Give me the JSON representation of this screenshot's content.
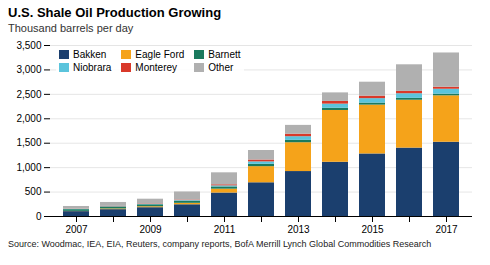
{
  "chart_data": {
    "type": "bar",
    "stacked": true,
    "title": "U.S. Shale Oil Production Growing",
    "subtitle": "Thousand barrels per day",
    "source": "Source: Woodmac, IEA, EIA, Reuters, company reports, BofA Merrill Lynch Global Commodities Research",
    "categories": [
      "2007",
      null,
      "2009",
      null,
      "2011",
      null,
      "2013",
      null,
      "2015",
      null,
      "2017"
    ],
    "series": [
      {
        "name": "Bakken",
        "color": "#1b3f6e",
        "values": [
          100,
          140,
          180,
          240,
          480,
          690,
          920,
          1110,
          1280,
          1400,
          1520
        ]
      },
      {
        "name": "Eagle Ford",
        "color": "#f5a31a",
        "values": [
          5,
          15,
          20,
          30,
          80,
          330,
          590,
          1060,
          1000,
          980,
          950
        ]
      },
      {
        "name": "Barnett",
        "color": "#1a7a5e",
        "values": [
          35,
          38,
          40,
          42,
          45,
          48,
          48,
          45,
          42,
          38,
          35
        ]
      },
      {
        "name": "Niobrara",
        "color": "#5bc4dc",
        "values": [
          5,
          7,
          10,
          13,
          22,
          50,
          75,
          85,
          90,
          95,
          100
        ]
      },
      {
        "name": "Monterey",
        "color": "#d9392a",
        "values": [
          5,
          7,
          9,
          12,
          22,
          38,
          52,
          55,
          52,
          47,
          42
        ]
      },
      {
        "name": "Other",
        "color": "#b0b0b0",
        "values": [
          55,
          80,
          95,
          165,
          245,
          195,
          180,
          175,
          285,
          545,
          700
        ]
      }
    ],
    "ylim": [
      0,
      3500
    ],
    "yticks": [
      0,
      500,
      {
        "value": 1000,
        "label": "1,000"
      },
      {
        "value": 1500,
        "label": "1,500"
      },
      {
        "value": 2000,
        "label": "2,000"
      },
      {
        "value": 2500,
        "label": "2,500"
      },
      {
        "value": 3000,
        "label": "3,000"
      },
      {
        "value": 3500,
        "label": "3,500"
      }
    ],
    "grid": true,
    "legend": "upper left"
  }
}
